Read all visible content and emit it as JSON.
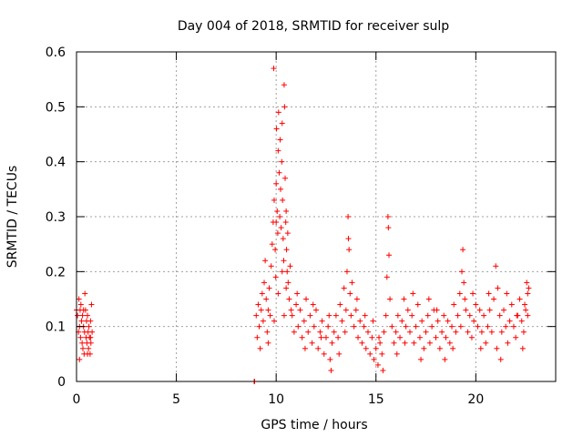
{
  "chart_data": {
    "type": "scatter",
    "title": "Day 004 of 2018, SRMTID for receiver sulp",
    "xlabel": "GPS time / hours",
    "ylabel": "SRMTID / TECUs",
    "xlim": [
      0,
      24
    ],
    "ylim": [
      0,
      0.6
    ],
    "xticks": [
      0,
      5,
      10,
      15,
      20
    ],
    "yticks": [
      0,
      0.1,
      0.2,
      0.3,
      0.4,
      0.5,
      0.6
    ],
    "xtick_labels": [
      "0",
      "5",
      "10",
      "15",
      "20"
    ],
    "ytick_labels": [
      "0",
      "0.1",
      "0.2",
      "0.3",
      "0.4",
      "0.5",
      "0.6"
    ],
    "grid": true,
    "marker": "+",
    "color": "#ff0000",
    "series": [
      {
        "name": "SRMTID",
        "points": [
          [
            0.0,
            0.13
          ],
          [
            0.05,
            0.12
          ],
          [
            0.1,
            0.09
          ],
          [
            0.12,
            0.15
          ],
          [
            0.15,
            0.1
          ],
          [
            0.18,
            0.13
          ],
          [
            0.2,
            0.08
          ],
          [
            0.22,
            0.14
          ],
          [
            0.25,
            0.11
          ],
          [
            0.28,
            0.07
          ],
          [
            0.3,
            0.12
          ],
          [
            0.32,
            0.06
          ],
          [
            0.35,
            0.1
          ],
          [
            0.38,
            0.05
          ],
          [
            0.4,
            0.09
          ],
          [
            0.42,
            0.16
          ],
          [
            0.45,
            0.13
          ],
          [
            0.48,
            0.08
          ],
          [
            0.5,
            0.11
          ],
          [
            0.52,
            0.07
          ],
          [
            0.55,
            0.12
          ],
          [
            0.58,
            0.09
          ],
          [
            0.6,
            0.06
          ],
          [
            0.62,
            0.1
          ],
          [
            0.65,
            0.08
          ],
          [
            0.68,
            0.05
          ],
          [
            0.7,
            0.11
          ],
          [
            0.72,
            0.07
          ],
          [
            0.75,
            0.14
          ],
          [
            0.78,
            0.09
          ],
          [
            0.15,
            0.04
          ],
          [
            0.35,
            0.13
          ],
          [
            0.55,
            0.05
          ],
          [
            0.7,
            0.08
          ],
          [
            8.9,
            0.0
          ],
          [
            8.92,
            0.0
          ],
          [
            9.0,
            0.12
          ],
          [
            9.05,
            0.08
          ],
          [
            9.1,
            0.14
          ],
          [
            9.15,
            0.1
          ],
          [
            9.2,
            0.06
          ],
          [
            9.25,
            0.13
          ],
          [
            9.3,
            0.16
          ],
          [
            9.35,
            0.11
          ],
          [
            9.4,
            0.18
          ],
          [
            9.45,
            0.22
          ],
          [
            9.5,
            0.15
          ],
          [
            9.55,
            0.09
          ],
          [
            9.6,
            0.13
          ],
          [
            9.65,
            0.17
          ],
          [
            9.7,
            0.12
          ],
          [
            9.75,
            0.21
          ],
          [
            9.8,
            0.25
          ],
          [
            9.85,
            0.29
          ],
          [
            9.9,
            0.33
          ],
          [
            9.95,
            0.24
          ],
          [
            9.98,
            0.19
          ],
          [
            10.0,
            0.36
          ],
          [
            10.02,
            0.46
          ],
          [
            10.05,
            0.31
          ],
          [
            10.08,
            0.27
          ],
          [
            10.1,
            0.42
          ],
          [
            10.12,
            0.49
          ],
          [
            10.15,
            0.38
          ],
          [
            10.18,
            0.3
          ],
          [
            10.2,
            0.44
          ],
          [
            10.22,
            0.35
          ],
          [
            10.25,
            0.28
          ],
          [
            10.28,
            0.4
          ],
          [
            10.3,
            0.47
          ],
          [
            10.32,
            0.33
          ],
          [
            10.35,
            0.26
          ],
          [
            10.38,
            0.22
          ],
          [
            10.4,
            0.54
          ],
          [
            10.42,
            0.5
          ],
          [
            10.45,
            0.37
          ],
          [
            10.48,
            0.29
          ],
          [
            10.5,
            0.31
          ],
          [
            10.52,
            0.24
          ],
          [
            10.55,
            0.2
          ],
          [
            10.58,
            0.27
          ],
          [
            10.6,
            0.18
          ],
          [
            10.65,
            0.15
          ],
          [
            10.7,
            0.21
          ],
          [
            10.75,
            0.13
          ],
          [
            9.88,
            0.57
          ],
          [
            10.0,
            0.29
          ],
          [
            10.3,
            0.2
          ],
          [
            10.5,
            0.17
          ],
          [
            9.6,
            0.07
          ],
          [
            9.9,
            0.11
          ],
          [
            10.1,
            0.16
          ],
          [
            10.4,
            0.12
          ],
          [
            10.8,
            0.12
          ],
          [
            10.9,
            0.09
          ],
          [
            11.0,
            0.14
          ],
          [
            11.1,
            0.1
          ],
          [
            11.2,
            0.13
          ],
          [
            11.3,
            0.08
          ],
          [
            11.4,
            0.11
          ],
          [
            11.5,
            0.15
          ],
          [
            11.6,
            0.09
          ],
          [
            11.7,
            0.12
          ],
          [
            11.8,
            0.07
          ],
          [
            11.9,
            0.1
          ],
          [
            12.0,
            0.13
          ],
          [
            12.1,
            0.06
          ],
          [
            12.2,
            0.09
          ],
          [
            12.3,
            0.11
          ],
          [
            12.4,
            0.05
          ],
          [
            12.5,
            0.08
          ],
          [
            12.6,
            0.1
          ],
          [
            12.7,
            0.04
          ],
          [
            12.8,
            0.07
          ],
          [
            12.9,
            0.09
          ],
          [
            13.0,
            0.12
          ],
          [
            13.1,
            0.08
          ],
          [
            13.2,
            0.14
          ],
          [
            13.3,
            0.11
          ],
          [
            13.4,
            0.17
          ],
          [
            13.5,
            0.13
          ],
          [
            13.55,
            0.2
          ],
          [
            13.6,
            0.3
          ],
          [
            13.62,
            0.26
          ],
          [
            13.65,
            0.24
          ],
          [
            13.7,
            0.16
          ],
          [
            13.75,
            0.12
          ],
          [
            13.8,
            0.18
          ],
          [
            13.9,
            0.1
          ],
          [
            14.0,
            0.13
          ],
          [
            14.1,
            0.08
          ],
          [
            14.2,
            0.11
          ],
          [
            14.3,
            0.07
          ],
          [
            14.4,
            0.1
          ],
          [
            14.5,
            0.06
          ],
          [
            14.6,
            0.09
          ],
          [
            14.7,
            0.05
          ],
          [
            14.8,
            0.08
          ],
          [
            14.9,
            0.04
          ],
          [
            15.0,
            0.06
          ],
          [
            15.1,
            0.03
          ],
          [
            15.2,
            0.07
          ],
          [
            15.3,
            0.05
          ],
          [
            15.4,
            0.09
          ],
          [
            15.5,
            0.12
          ],
          [
            15.55,
            0.19
          ],
          [
            15.6,
            0.3
          ],
          [
            15.62,
            0.28
          ],
          [
            15.65,
            0.23
          ],
          [
            15.7,
            0.15
          ],
          [
            15.8,
            0.1
          ],
          [
            15.9,
            0.07
          ],
          [
            16.0,
            0.09
          ],
          [
            16.1,
            0.12
          ],
          [
            16.2,
            0.08
          ],
          [
            16.3,
            0.11
          ],
          [
            16.4,
            0.15
          ],
          [
            16.5,
            0.1
          ],
          [
            16.6,
            0.13
          ],
          [
            16.7,
            0.09
          ],
          [
            16.8,
            0.12
          ],
          [
            16.9,
            0.07
          ],
          [
            17.0,
            0.1
          ],
          [
            17.1,
            0.14
          ],
          [
            17.2,
            0.08
          ],
          [
            17.3,
            0.11
          ],
          [
            17.4,
            0.06
          ],
          [
            17.5,
            0.09
          ],
          [
            17.6,
            0.12
          ],
          [
            17.7,
            0.07
          ],
          [
            17.8,
            0.1
          ],
          [
            17.9,
            0.13
          ],
          [
            18.0,
            0.08
          ],
          [
            18.1,
            0.11
          ],
          [
            18.2,
            0.06
          ],
          [
            18.3,
            0.09
          ],
          [
            18.4,
            0.12
          ],
          [
            18.5,
            0.08
          ],
          [
            18.6,
            0.11
          ],
          [
            18.7,
            0.07
          ],
          [
            18.8,
            0.1
          ],
          [
            18.9,
            0.14
          ],
          [
            19.0,
            0.09
          ],
          [
            19.1,
            0.12
          ],
          [
            19.2,
            0.16
          ],
          [
            19.3,
            0.2
          ],
          [
            19.35,
            0.24
          ],
          [
            19.4,
            0.18
          ],
          [
            19.5,
            0.13
          ],
          [
            19.6,
            0.09
          ],
          [
            19.7,
            0.12
          ],
          [
            19.8,
            0.08
          ],
          [
            19.9,
            0.11
          ],
          [
            20.0,
            0.14
          ],
          [
            20.1,
            0.1
          ],
          [
            20.2,
            0.13
          ],
          [
            20.3,
            0.09
          ],
          [
            20.4,
            0.12
          ],
          [
            20.5,
            0.07
          ],
          [
            20.6,
            0.1
          ],
          [
            20.7,
            0.13
          ],
          [
            20.8,
            0.09
          ],
          [
            20.9,
            0.15
          ],
          [
            21.0,
            0.21
          ],
          [
            21.1,
            0.17
          ],
          [
            21.2,
            0.12
          ],
          [
            21.3,
            0.09
          ],
          [
            21.4,
            0.13
          ],
          [
            21.5,
            0.1
          ],
          [
            21.6,
            0.07
          ],
          [
            21.7,
            0.11
          ],
          [
            21.8,
            0.14
          ],
          [
            21.9,
            0.1
          ],
          [
            22.0,
            0.08
          ],
          [
            22.1,
            0.12
          ],
          [
            22.2,
            0.15
          ],
          [
            22.3,
            0.11
          ],
          [
            22.4,
            0.09
          ],
          [
            22.5,
            0.13
          ],
          [
            22.55,
            0.18
          ],
          [
            22.6,
            0.16
          ],
          [
            22.65,
            0.17
          ],
          [
            11.05,
            0.16
          ],
          [
            11.45,
            0.06
          ],
          [
            11.85,
            0.14
          ],
          [
            12.25,
            0.08
          ],
          [
            12.65,
            0.12
          ],
          [
            12.75,
            0.02
          ],
          [
            13.15,
            0.05
          ],
          [
            13.45,
            0.09
          ],
          [
            14.05,
            0.15
          ],
          [
            14.45,
            0.12
          ],
          [
            14.85,
            0.11
          ],
          [
            15.15,
            0.08
          ],
          [
            15.35,
            0.02
          ],
          [
            16.05,
            0.05
          ],
          [
            16.45,
            0.07
          ],
          [
            16.85,
            0.16
          ],
          [
            17.25,
            0.04
          ],
          [
            17.65,
            0.15
          ],
          [
            18.05,
            0.13
          ],
          [
            18.45,
            0.04
          ],
          [
            18.85,
            0.06
          ],
          [
            19.25,
            0.1
          ],
          [
            19.45,
            0.15
          ],
          [
            19.85,
            0.16
          ],
          [
            20.25,
            0.06
          ],
          [
            20.65,
            0.16
          ],
          [
            21.05,
            0.06
          ],
          [
            21.25,
            0.04
          ],
          [
            21.55,
            0.16
          ],
          [
            22.05,
            0.12
          ],
          [
            22.35,
            0.06
          ],
          [
            22.45,
            0.14
          ],
          [
            22.6,
            0.12
          ]
        ]
      }
    ]
  }
}
